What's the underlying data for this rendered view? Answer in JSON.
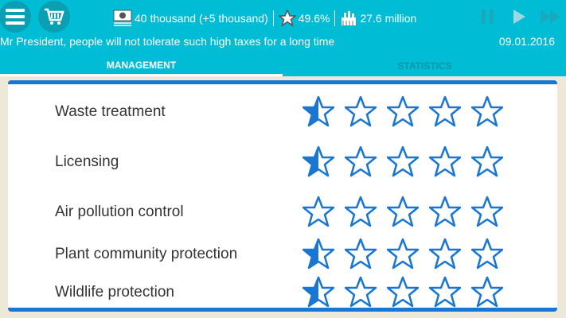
{
  "header": {
    "menu_icon": "menu-icon",
    "cart_icon": "cart-icon",
    "money": "40 thousand (+5 thousand)",
    "rating": "49.6%",
    "population": "27.6 million",
    "message": "Mr President, people will not tolerate such high taxes for a long time",
    "date": "09.01.2016"
  },
  "tabs": [
    {
      "label": "MANAGEMENT",
      "active": true
    },
    {
      "label": "STATISTICS",
      "active": false
    }
  ],
  "colors": {
    "header": "#00bcd4",
    "accent": "#1976d2",
    "background": "#eee8d8"
  },
  "items": [
    {
      "label": "Waste treatment",
      "rating": 0.5,
      "max": 5
    },
    {
      "label": "Licensing",
      "rating": 0.5,
      "max": 5
    },
    {
      "label": "Air pollution control",
      "rating": 0,
      "max": 5
    },
    {
      "label": "Plant community protection",
      "rating": 0.5,
      "max": 5
    },
    {
      "label": "Wildlife protection",
      "rating": 0.5,
      "max": 5
    }
  ]
}
